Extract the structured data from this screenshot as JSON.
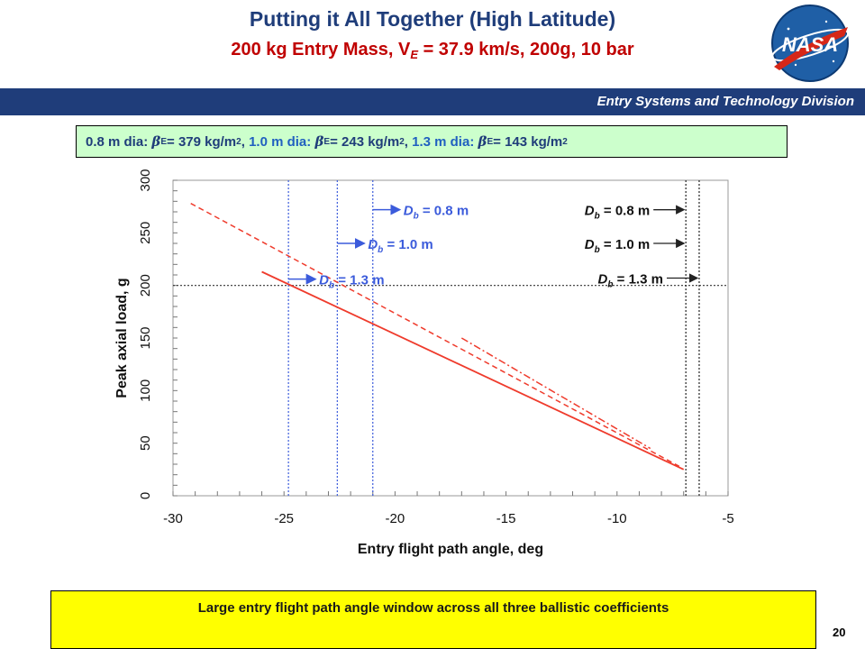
{
  "header": {
    "title": "Putting it All Together (High Latitude)",
    "subtitle_prefix": "200 kg Entry Mass, V",
    "subtitle_subscript": "E",
    "subtitle_suffix": " = 37.9 km/s, 200g, 10 bar",
    "division": "Entry Systems and Technology Division",
    "logo_text": "NASA"
  },
  "info": {
    "d1": "0.8 m dia:",
    "b1": "= 379 kg/m",
    "d2": "1.0 m dia:",
    "b2": "= 243 kg/m",
    "d3": "1.3 m dia:",
    "b3": "= 143 kg/m",
    "beta_symbol": "β",
    "beta_subscript": "E",
    "unit_exponent": "2"
  },
  "chart_data": {
    "type": "line",
    "xlabel": "Entry flight path angle, deg",
    "ylabel": "Peak axial load, g",
    "xlim": [
      -30,
      -5
    ],
    "ylim": [
      0,
      300
    ],
    "xticks": [
      -30,
      -25,
      -20,
      -15,
      -10,
      -5
    ],
    "yticks": [
      0,
      50,
      100,
      150,
      200,
      250,
      300
    ],
    "threshold_y": 200,
    "series": [
      {
        "id": "d08",
        "style": "dash-dot",
        "color": "#ef3b2c",
        "x": [
          -17.0,
          -8.5
        ],
        "y": [
          150,
          45
        ]
      },
      {
        "id": "d10",
        "style": "dashed",
        "color": "#ef3b2c",
        "x": [
          -29.2,
          -7.2
        ],
        "y": [
          278,
          28
        ]
      },
      {
        "id": "d13",
        "style": "solid",
        "color": "#ef3b2c",
        "x": [
          -26.0,
          -7.0
        ],
        "y": [
          213,
          25
        ]
      }
    ],
    "entry_limits": [
      {
        "label_main": "D",
        "label_sub": "b",
        "label_val": " = 0.8 m",
        "x": -21.0
      },
      {
        "label_main": "D",
        "label_sub": "b",
        "label_val": " = 1.0 m",
        "x": -22.6
      },
      {
        "label_main": "D",
        "label_sub": "b",
        "label_val": " = 1.3 m",
        "x": -24.8
      }
    ],
    "exit_limits": [
      {
        "label_main": "D",
        "label_sub": "b",
        "label_val": " = 0.8 m",
        "x": -6.9,
        "y": 272
      },
      {
        "label_main": "D",
        "label_sub": "b",
        "label_val": " = 1.0 m",
        "x": -6.9,
        "y": 240
      },
      {
        "label_main": "D",
        "label_sub": "b",
        "label_val": " = 1.3 m",
        "x": -6.3,
        "y": 207
      }
    ],
    "colors": {
      "curves": "#ef3b2c",
      "entry_lines": "#3b5bdb",
      "exit_lines": "#222222",
      "threshold": "#333333"
    }
  },
  "conclusion": "Large entry flight path angle window across all three ballistic coefficients",
  "page_number": "20"
}
